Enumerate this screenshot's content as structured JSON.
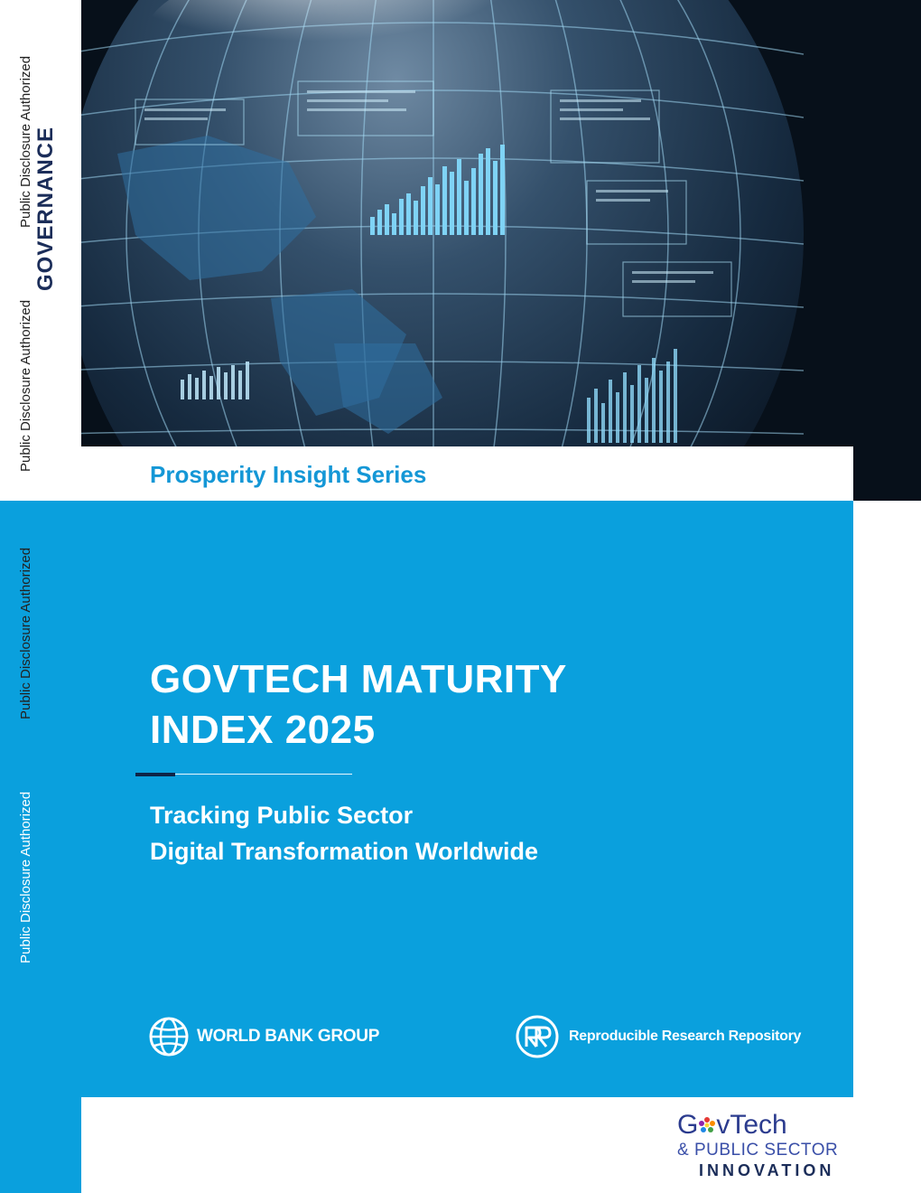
{
  "spine": {
    "disclosure_labels": [
      "Public Disclosure Authorized",
      "Public Disclosure Authorized",
      "Public Disclosure Authorized",
      "Public Disclosure Authorized"
    ],
    "category": "GOVERNANCE"
  },
  "series": "Prosperity Insight Series",
  "title": {
    "line1": "GOVTECH MATURITY",
    "line2": "INDEX 2025"
  },
  "subtitle": {
    "line1": "Tracking Public Sector",
    "line2": "Digital Transformation Worldwide"
  },
  "logos": {
    "world_bank": "WORLD BANK GROUP",
    "repository": "Reproducible Research Repository",
    "govtech": {
      "word_prefix": "G",
      "word_suffix": "vTech",
      "line2": "& PUBLIC SECTOR",
      "line3": "INNOVATION"
    }
  },
  "colors": {
    "brand_blue": "#0aa0dd",
    "navy": "#1b2d59",
    "series_blue": "#1497d6"
  },
  "icons": [
    "globe-icon",
    "rrr-logo-icon",
    "govtech-flower-icon"
  ]
}
